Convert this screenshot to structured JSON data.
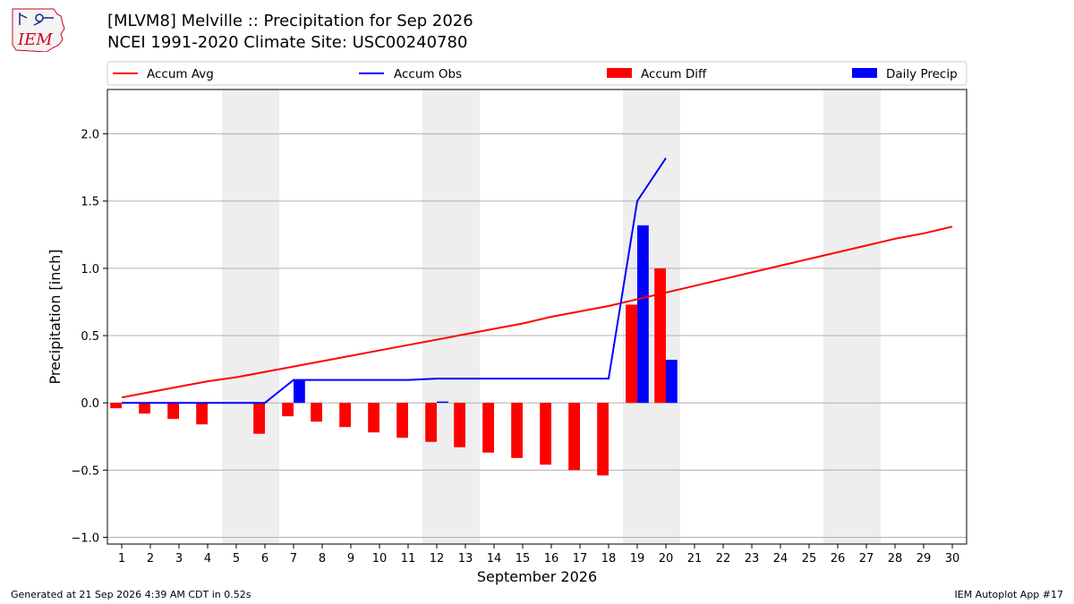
{
  "header": {
    "title_line1": "[MLVM8] Melville :: Precipitation for Sep 2026",
    "title_line2": "NCEI 1991-2020 Climate Site: USC00240780"
  },
  "logo": {
    "text": "IEM",
    "color": "#d0021b"
  },
  "footer": {
    "left": "Generated at 21 Sep 2026 4:39 AM CDT in 0.52s",
    "right": "IEM Autoplot App #17"
  },
  "chart_data": {
    "type": "bar",
    "xlabel": "September 2026",
    "ylabel": "Precipitation [inch]",
    "ylim": [
      -1.05,
      2.33
    ],
    "xlim": [
      0.5,
      30.5
    ],
    "yticks": [
      -1.0,
      -0.5,
      0.0,
      0.5,
      1.0,
      1.5,
      2.0
    ],
    "ytick_labels": [
      "−1.0",
      "−0.5",
      "0.0",
      "0.5",
      "1.0",
      "1.5",
      "2.0"
    ],
    "x": [
      1,
      2,
      3,
      4,
      5,
      6,
      7,
      8,
      9,
      10,
      11,
      12,
      13,
      14,
      15,
      16,
      17,
      18,
      19,
      20,
      21,
      22,
      23,
      24,
      25,
      26,
      27,
      28,
      29,
      30
    ],
    "x_tick_labels": [
      "1",
      "2",
      "3",
      "4",
      "5",
      "6",
      "7",
      "8",
      "9",
      "10",
      "11",
      "12",
      "13",
      "14",
      "15",
      "16",
      "17",
      "18",
      "19",
      "20",
      "21",
      "22",
      "23",
      "24",
      "25",
      "26",
      "27",
      "28",
      "29",
      "30"
    ],
    "grid": "horizontal",
    "weekend_shading": [
      [
        5,
        6
      ],
      [
        12,
        13
      ],
      [
        19,
        20
      ],
      [
        26,
        27
      ]
    ],
    "legend": {
      "placement": "top",
      "entries": [
        "Accum Avg",
        "Accum Obs",
        "Accum Diff",
        "Daily Precip"
      ]
    },
    "series": [
      {
        "name": "Accum Avg",
        "kind": "line",
        "color": "#ff0000",
        "values": [
          0.04,
          0.08,
          0.12,
          0.16,
          0.19,
          0.23,
          0.27,
          0.31,
          0.35,
          0.39,
          0.43,
          0.47,
          0.51,
          0.55,
          0.59,
          0.64,
          0.68,
          0.72,
          0.77,
          0.82,
          0.87,
          0.92,
          0.97,
          1.02,
          1.07,
          1.12,
          1.17,
          1.22,
          1.26,
          1.31
        ]
      },
      {
        "name": "Accum Obs",
        "kind": "line",
        "color": "#0000ff",
        "x": [
          1,
          2,
          3,
          4,
          6,
          7,
          8,
          9,
          10,
          11,
          12,
          13,
          14,
          15,
          16,
          17,
          18,
          19,
          20
        ],
        "values": [
          0.0,
          0.0,
          0.0,
          0.0,
          0.0,
          0.17,
          0.17,
          0.17,
          0.17,
          0.17,
          0.18,
          0.18,
          0.18,
          0.18,
          0.18,
          0.18,
          0.18,
          1.5,
          1.82
        ]
      },
      {
        "name": "Accum Diff",
        "kind": "bar",
        "color": "#ff0000",
        "x": [
          1,
          2,
          3,
          4,
          6,
          7,
          8,
          9,
          10,
          11,
          12,
          13,
          14,
          15,
          16,
          17,
          18,
          19,
          20
        ],
        "values": [
          -0.04,
          -0.08,
          -0.12,
          -0.16,
          -0.23,
          -0.1,
          -0.14,
          -0.18,
          -0.22,
          -0.26,
          -0.29,
          -0.33,
          -0.37,
          -0.41,
          -0.46,
          -0.5,
          -0.54,
          0.73,
          1.0
        ]
      },
      {
        "name": "Daily Precip",
        "kind": "bar",
        "color": "#0000ff",
        "x": [
          7,
          12,
          19,
          20
        ],
        "values": [
          0.17,
          0.01,
          1.32,
          0.32
        ]
      }
    ]
  }
}
